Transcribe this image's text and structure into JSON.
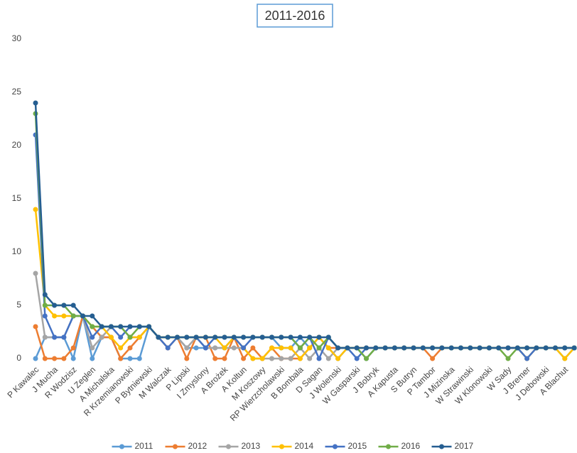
{
  "chart_data": {
    "type": "line",
    "title": "2011-2016",
    "categories": [
      "P Kawalec",
      null,
      "J Mucha",
      null,
      "R Wodzisz",
      null,
      "U Zeglen",
      null,
      "A Michalska",
      null,
      "R Krzemianowski",
      null,
      "P Bytniewski",
      null,
      "M Walczak",
      null,
      "P Lipski",
      null,
      "I Zmyslony",
      null,
      "A Brożek",
      null,
      "A Koltun",
      null,
      "M Koszowy",
      null,
      "RP Wierzcholawski",
      null,
      "B Bombala",
      null,
      "D Sagan",
      null,
      "J Wolenski",
      null,
      "W Gasparski",
      null,
      "J Bobryk",
      null,
      "A Kapusta",
      null,
      "S Butryn",
      null,
      "P Tambor",
      null,
      "J Mizinska",
      null,
      "W Strawinski",
      null,
      "W Klonowski",
      null,
      "W Sady",
      null,
      "J Bremer",
      null,
      "J Debowski",
      null,
      "A Blachut",
      null
    ],
    "series": [
      {
        "name": "2011",
        "color": "#5b9bd5",
        "values": [
          0,
          2,
          2,
          2,
          0,
          4,
          0,
          2,
          2,
          0,
          0,
          0,
          3,
          2,
          2,
          2,
          1,
          1,
          1,
          1,
          1,
          2,
          2,
          2,
          2,
          2,
          1,
          1,
          2,
          1,
          2,
          1,
          0,
          1,
          1,
          0,
          1,
          1,
          1,
          1,
          1,
          1,
          1,
          1,
          1,
          1,
          1,
          1,
          1,
          1,
          1,
          1,
          1,
          1,
          1,
          1,
          0,
          1
        ]
      },
      {
        "name": "2012",
        "color": "#ed7d31",
        "values": [
          3,
          0,
          0,
          0,
          1,
          4,
          3,
          2,
          2,
          0,
          1,
          2,
          3,
          2,
          1,
          2,
          0,
          2,
          2,
          0,
          0,
          2,
          0,
          1,
          0,
          1,
          0,
          0,
          0,
          1,
          2,
          1,
          1,
          1,
          1,
          1,
          1,
          1,
          1,
          1,
          1,
          1,
          0,
          1,
          1,
          1,
          1,
          1,
          1,
          1,
          1,
          1,
          1,
          1,
          1,
          1,
          1,
          1
        ]
      },
      {
        "name": "2013",
        "color": "#a5a5a5",
        "values": [
          8,
          2,
          2,
          2,
          4,
          4,
          1,
          2,
          3,
          3,
          2,
          2,
          3,
          2,
          2,
          2,
          1,
          2,
          1,
          1,
          1,
          1,
          1,
          0,
          0,
          0,
          0,
          0,
          1,
          0,
          1,
          0,
          1,
          1,
          1,
          1,
          1,
          1,
          1,
          1,
          1,
          1,
          1,
          1,
          1,
          1,
          1,
          1,
          1,
          1,
          1,
          1,
          1,
          1,
          1,
          1,
          1,
          1
        ]
      },
      {
        "name": "2014",
        "color": "#ffc000",
        "values": [
          14,
          5,
          4,
          4,
          4,
          4,
          3,
          3,
          2,
          1,
          2,
          2,
          3,
          2,
          2,
          2,
          2,
          2,
          2,
          2,
          1,
          2,
          1,
          0,
          0,
          1,
          1,
          1,
          0,
          1,
          2,
          1,
          0,
          1,
          1,
          1,
          1,
          1,
          1,
          1,
          1,
          1,
          1,
          1,
          1,
          1,
          1,
          1,
          1,
          1,
          1,
          1,
          0,
          1,
          1,
          1,
          0,
          1
        ]
      },
      {
        "name": "2015",
        "color": "#4472c4",
        "values": [
          21,
          4,
          2,
          2,
          4,
          4,
          2,
          3,
          3,
          2,
          3,
          3,
          3,
          2,
          1,
          2,
          2,
          2,
          1,
          2,
          2,
          2,
          1,
          2,
          2,
          2,
          2,
          2,
          1,
          2,
          0,
          2,
          1,
          1,
          0,
          1,
          1,
          1,
          1,
          1,
          1,
          1,
          1,
          1,
          1,
          1,
          1,
          1,
          1,
          1,
          1,
          1,
          0,
          1,
          1,
          1,
          1,
          1
        ]
      },
      {
        "name": "2016",
        "color": "#70ad47",
        "values": [
          23,
          5,
          5,
          5,
          4,
          4,
          3,
          3,
          3,
          3,
          2,
          3,
          3,
          2,
          2,
          2,
          2,
          2,
          2,
          2,
          2,
          2,
          2,
          2,
          2,
          2,
          2,
          2,
          1,
          2,
          1,
          2,
          1,
          1,
          1,
          0,
          1,
          1,
          1,
          1,
          1,
          1,
          1,
          1,
          1,
          1,
          1,
          1,
          1,
          1,
          0,
          1,
          1,
          1,
          1,
          1,
          1,
          1
        ]
      },
      {
        "name": "2017",
        "color": "#255e91",
        "values": [
          24,
          6,
          5,
          5,
          5,
          4,
          4,
          3,
          3,
          3,
          3,
          3,
          3,
          2,
          2,
          2,
          2,
          2,
          2,
          2,
          2,
          2,
          2,
          2,
          2,
          2,
          2,
          2,
          2,
          2,
          2,
          2,
          1,
          1,
          1,
          1,
          1,
          1,
          1,
          1,
          1,
          1,
          1,
          1,
          1,
          1,
          1,
          1,
          1,
          1,
          1,
          1,
          1,
          1,
          1,
          1,
          1,
          1
        ]
      }
    ],
    "ylim": [
      0,
      30
    ],
    "yticks": [
      0,
      5,
      10,
      15,
      20,
      25,
      30
    ],
    "grid": false,
    "legend": "bottom"
  }
}
